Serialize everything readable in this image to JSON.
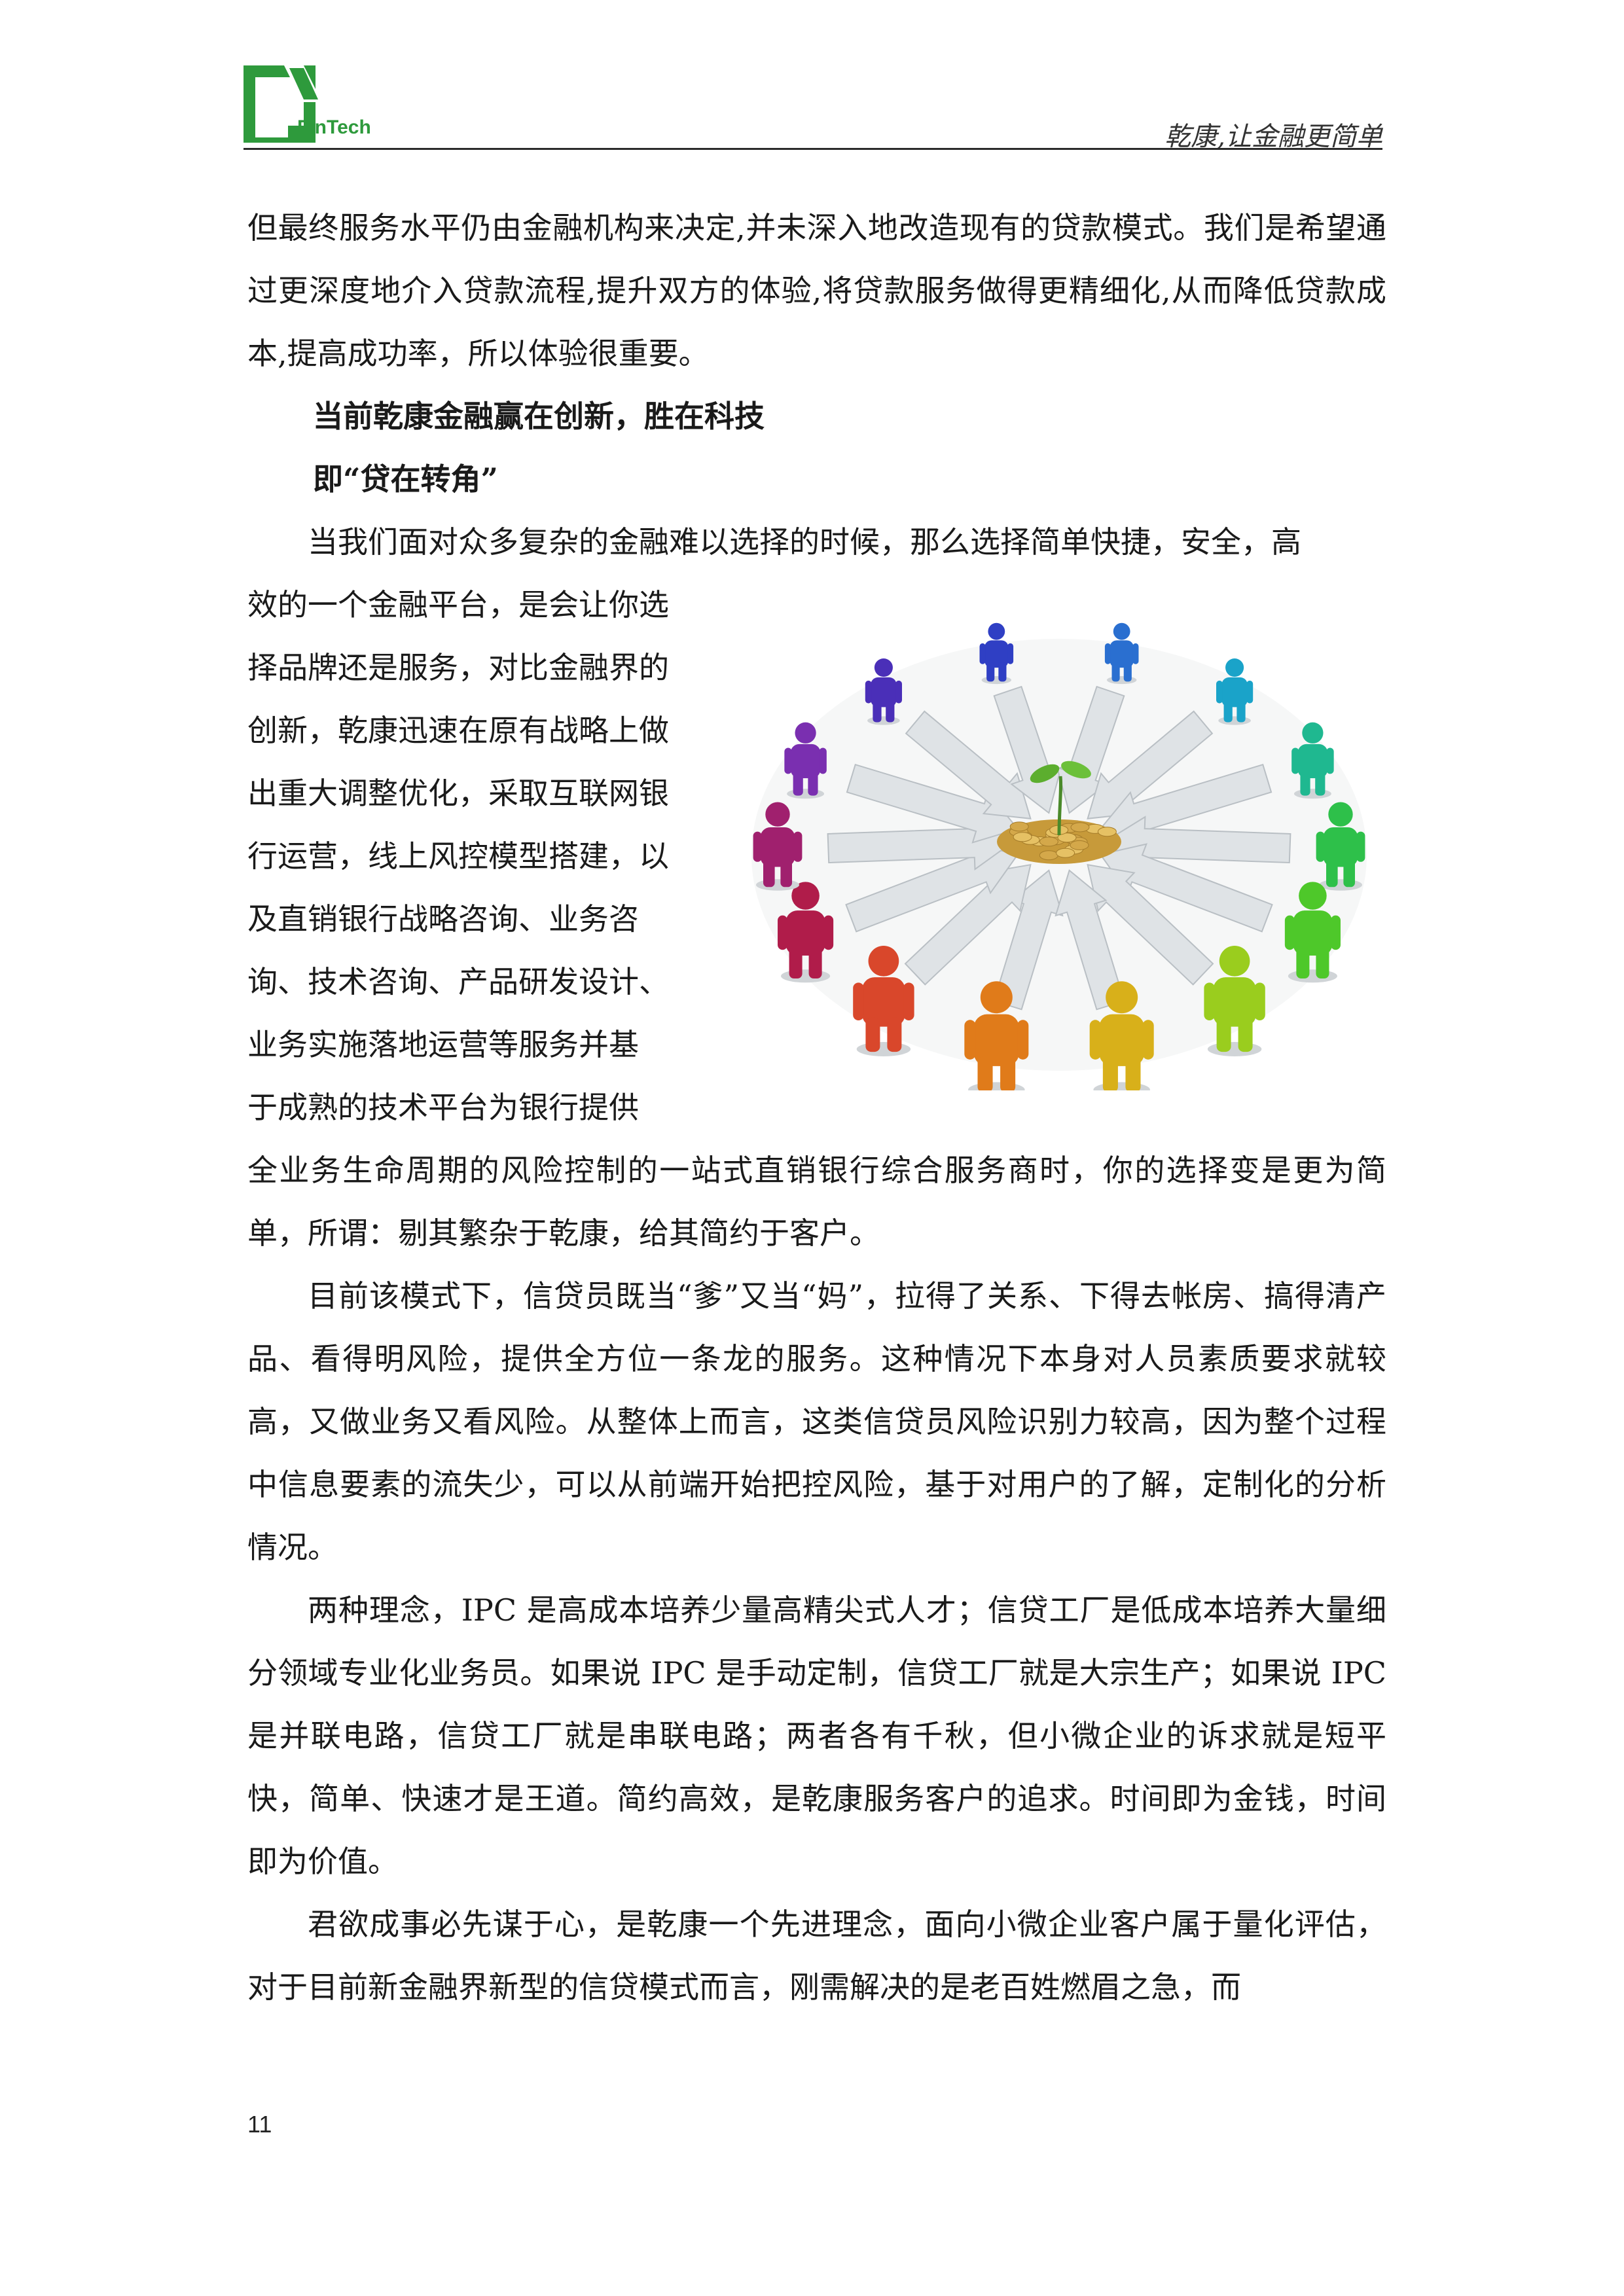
{
  "header": {
    "logo_text": "FinTech",
    "slogan": "乾康,让金融更简单"
  },
  "paragraphs": {
    "p1": "但最终服务水平仍由金融机构来决定,并未深入地改造现有的贷款模式。我们是希望通过更深度地介入贷款流程,提升双方的体验,将贷款服务做得更精细化,从而降低贷款成本,提高成功率，所以体验很重要。",
    "h1": "当前乾康金融赢在创新，胜在科技",
    "h2": "即“贷在转角”",
    "p2_intro": "当我们面对众多复杂的金融难以选择的时候，那么选择简单快捷，安全，高",
    "p2_lines": [
      "效的一个金融平台，是会让你选",
      "择品牌还是服务，对比金融界的",
      "创新，乾康迅速在原有战略上做",
      "出重大调整优化，采取互联网银",
      "行运营，线上风控模型搭建，以",
      "及直销银行战略咨询、业务咨",
      "询、技术咨询、产品研发设计、",
      "业务实施落地运营等服务并基",
      "于成熟的技术平台为银行提供"
    ],
    "p2_tail": "全业务生命周期的风险控制的一站式直销银行综合服务商时，你的选择变是更为简单，所谓：剔其繁杂于乾康，给其简约于客户。",
    "p3": "目前该模式下，信贷员既当“爹”又当“妈”，拉得了关系、下得去帐房、搞得清产品、看得明风险，提供全方位一条龙的服务。这种情况下本身对人员素质要求就较高，又做业务又看风险。从整体上而言，这类信贷员风险识别力较高，因为整个过程中信息要素的流失少，可以从前端开始把控风险，基于对用户的了解，定制化的分析情况。",
    "p4": "两种理念，IPC 是高成本培养少量高精尖式人才；信贷工厂是低成本培养大量细分领域专业化业务员。如果说 IPC 是手动定制，信贷工厂就是大宗生产；如果说 IPC 是并联电路，信贷工厂就是串联电路；两者各有千秋，但小微企业的诉求就是短平快，简单、快速才是王道。简约高效，是乾康服务客户的追求。时间即为金钱，时间即为价值。",
    "p5": "君欲成事必先谋于心，是乾康一个先进理念，面向小微企业客户属于量化评估，对于目前新金融界新型的信贷模式而言，刚需解决的是老百姓燃眉之急，而"
  },
  "page_number": "11",
  "colors": {
    "logo_green": "#2e9a3c",
    "people": [
      "#e07b1a",
      "#d9472b",
      "#b01c4a",
      "#a0206e",
      "#7a2fb0",
      "#4a2fb8",
      "#2f3fc4",
      "#2a6fd0",
      "#1aa3c9",
      "#1fb890",
      "#2ec04a",
      "#4ec82a",
      "#9acd1e",
      "#d8b01a"
    ]
  }
}
